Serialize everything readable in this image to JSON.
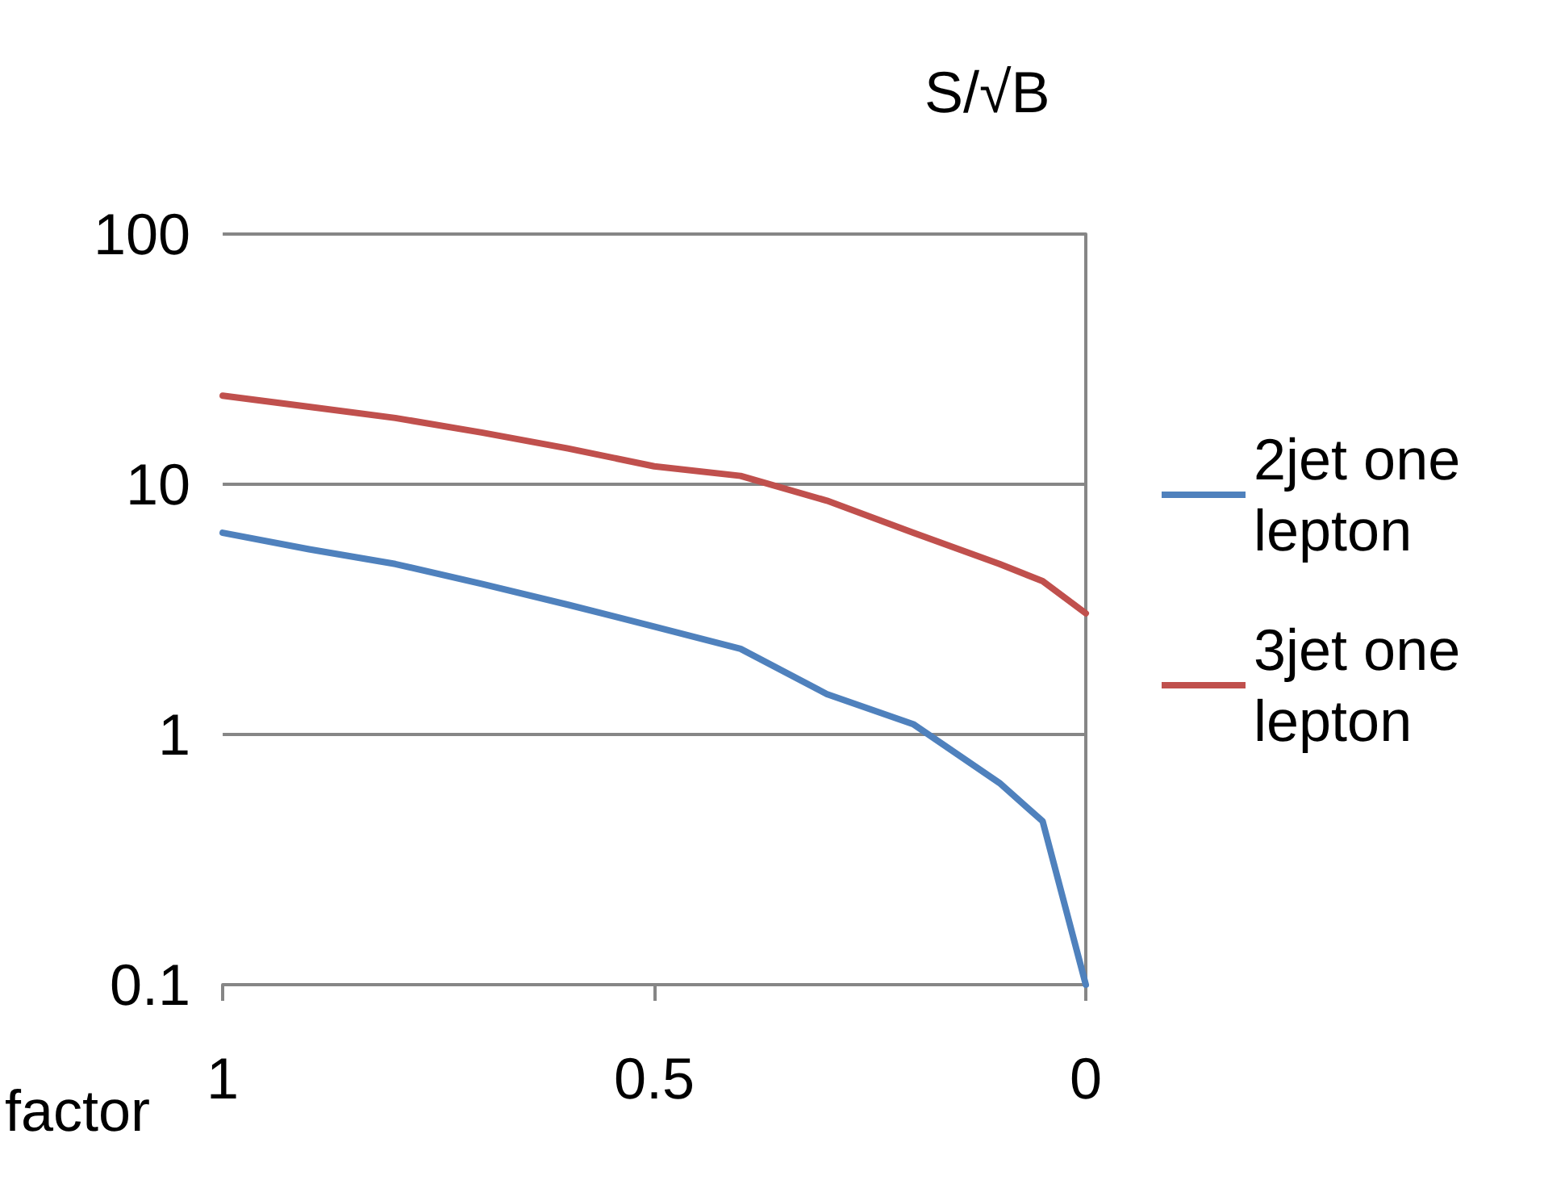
{
  "chart_data": {
    "type": "line",
    "xlabel": "factor",
    "ylabel": "S/√B",
    "x": [
      1,
      0.9,
      0.8,
      0.7,
      0.6,
      0.5,
      0.4,
      0.3,
      0.2,
      0.1,
      0.05,
      0
    ],
    "series": [
      {
        "name": "2jet one lepton",
        "color": "#4f81bd",
        "values": [
          6.4,
          5.5,
          4.8,
          4.0,
          3.3,
          2.7,
          2.2,
          1.45,
          1.1,
          0.64,
          0.45,
          0.1
        ]
      },
      {
        "name": "3jet one lepton",
        "color": "#c0504d",
        "values": [
          22.6,
          20.4,
          18.4,
          16.1,
          13.9,
          11.8,
          10.8,
          8.6,
          6.4,
          4.8,
          4.1,
          3.05
        ]
      }
    ],
    "xlim": [
      1,
      0
    ],
    "xticks": [
      1,
      0.5,
      0
    ],
    "ylim": [
      0.1,
      100
    ],
    "yticks": [
      0.1,
      1,
      10,
      100
    ],
    "log": "y",
    "grid": "y",
    "legend": "right",
    "marker": "none",
    "line_style": "solid"
  }
}
